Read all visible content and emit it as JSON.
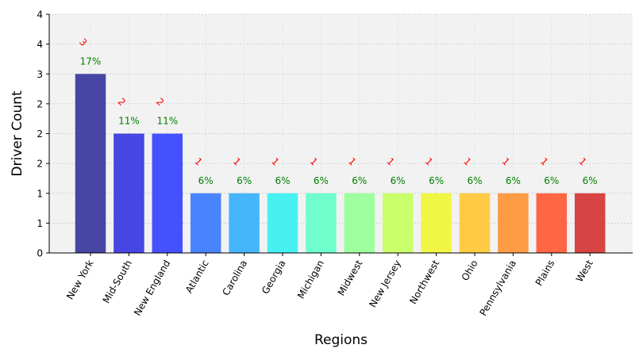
{
  "chart_data": {
    "type": "bar",
    "xlabel": "Regions",
    "ylabel": "Driver Count",
    "categories": [
      "New York",
      "Mid-South",
      "New England",
      "Atlantic",
      "Carolina",
      "Georgia",
      "Michigan",
      "Midwest",
      "New Jersey",
      "Northwest",
      "Ohio",
      "Pennsylvania",
      "Plains",
      "West"
    ],
    "values": [
      3,
      2,
      2,
      1,
      1,
      1,
      1,
      1,
      1,
      1,
      1,
      1,
      1,
      1
    ],
    "count_labels": [
      "3",
      "2",
      "2",
      "1",
      "1",
      "1",
      "1",
      "1",
      "1",
      "1",
      "1",
      "1",
      "1",
      "1"
    ],
    "percent_labels": [
      "17%",
      "11%",
      "11%",
      "6%",
      "6%",
      "6%",
      "6%",
      "6%",
      "6%",
      "6%",
      "6%",
      "6%",
      "6%",
      "6%"
    ],
    "ylim": [
      0,
      4
    ],
    "y_tick_labels": [
      "0",
      "1",
      "1",
      "2",
      "2",
      "2",
      "3",
      "4",
      "4"
    ],
    "grid": true,
    "colors": [
      "#3d3d9e",
      "#3c3ce0",
      "#3b47ff",
      "#3f7dff",
      "#3cb2fb",
      "#3df0f0",
      "#67ffca",
      "#98ff98",
      "#c7ff64",
      "#f0f53a",
      "#ffc83a",
      "#ff963a",
      "#ff5e3a",
      "#d63a3a"
    ],
    "count_label_color": "#ff0000",
    "percent_label_color": "#008000",
    "plot_background": "#f2f2f2"
  }
}
